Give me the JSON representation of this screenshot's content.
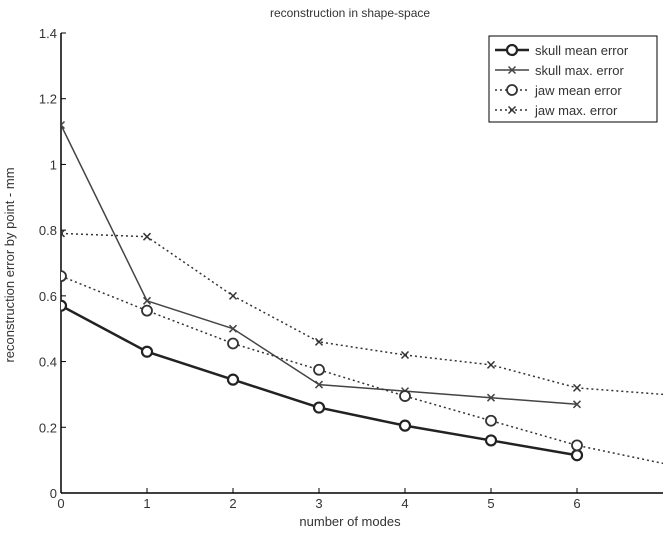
{
  "chart_data": {
    "type": "line",
    "title": "reconstruction in shape-space",
    "xlabel": "number of modes",
    "ylabel": "reconstruction error by point - mm",
    "xlim": [
      0,
      7
    ],
    "ylim": [
      0,
      1.4
    ],
    "xticks": [
      "0",
      "1",
      "2",
      "3",
      "4",
      "5",
      "6"
    ],
    "yticks": [
      "0",
      "0.2",
      "0.4",
      "0.6",
      "0.8",
      "1",
      "1.2",
      "1.4"
    ],
    "grid": false,
    "legend_position": "top-right",
    "series": [
      {
        "name": "skull mean error",
        "style": "solid",
        "marker": "circle",
        "width": "thick",
        "color": "#222222",
        "x": [
          0,
          1,
          2,
          3,
          4,
          5,
          6
        ],
        "y": [
          0.57,
          0.43,
          0.345,
          0.26,
          0.205,
          0.16,
          0.115
        ]
      },
      {
        "name": "skull max. error",
        "style": "solid",
        "marker": "x",
        "width": "normal",
        "color": "#444444",
        "x": [
          0,
          1,
          2,
          3,
          4,
          5,
          6
        ],
        "y": [
          1.12,
          0.585,
          0.5,
          0.33,
          0.31,
          0.29,
          0.27
        ]
      },
      {
        "name": "jaw mean error",
        "style": "dotted",
        "marker": "circle",
        "width": "normal",
        "color": "#333333",
        "x": [
          0,
          1,
          2,
          3,
          4,
          5,
          6,
          7
        ],
        "y": [
          0.66,
          0.555,
          0.455,
          0.375,
          0.295,
          0.22,
          0.145,
          0.09
        ]
      },
      {
        "name": "jaw max. error",
        "style": "dotted",
        "marker": "x",
        "width": "normal",
        "color": "#333333",
        "x": [
          0,
          1,
          2,
          3,
          4,
          5,
          6,
          7
        ],
        "y": [
          0.79,
          0.78,
          0.6,
          0.46,
          0.42,
          0.39,
          0.32,
          0.3
        ]
      }
    ]
  }
}
